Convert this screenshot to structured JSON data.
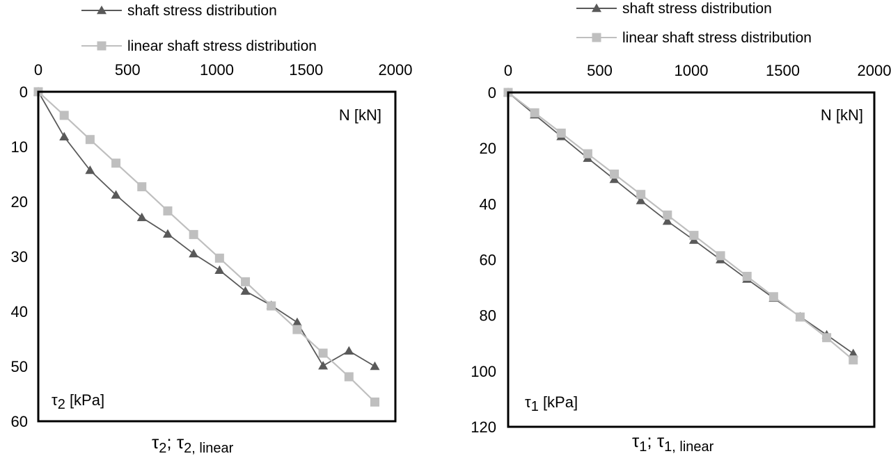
{
  "colors": {
    "shaft": "#595959",
    "linear": "#bfbfbf",
    "axis": "#000000"
  },
  "chart_data": [
    {
      "type": "line",
      "panel": "left",
      "legend": [
        "shaft stress distribution",
        "linear shaft stress distribution"
      ],
      "x_axis_position": "top",
      "x_ticks": [
        "0",
        "500",
        "1000",
        "1500",
        "2000"
      ],
      "y_ticks": [
        "0",
        "10",
        "20",
        "30",
        "40",
        "50",
        "60"
      ],
      "xlim": [
        0,
        2000
      ],
      "ylim": [
        0,
        60
      ],
      "y_inverted": true,
      "corner_label": "N [kN]",
      "inner_label": {
        "symbol": "τ",
        "sub": "2",
        "rest": "  [kPa]"
      },
      "xlabel": {
        "sym1": "τ",
        "sub1": "2",
        "mid": "; ",
        "sym2": "τ",
        "sub2": "2, linear"
      },
      "series": [
        {
          "name": "shaft stress distribution",
          "marker": "triangle",
          "x": [
            0,
            145,
            290,
            435,
            580,
            725,
            870,
            1015,
            1160,
            1305,
            1450,
            1595,
            1740,
            1885
          ],
          "y": [
            0,
            8.2,
            14.3,
            18.8,
            22.9,
            25.9,
            29.5,
            32.5,
            36.3,
            38.9,
            42.0,
            49.9,
            47.2,
            50.0
          ]
        },
        {
          "name": "linear shaft stress distribution",
          "marker": "square",
          "x": [
            0,
            145,
            290,
            435,
            580,
            725,
            870,
            1015,
            1160,
            1305,
            1450,
            1595,
            1740,
            1885
          ],
          "y": [
            0,
            4.3,
            8.7,
            13.0,
            17.3,
            21.7,
            26.0,
            30.3,
            34.6,
            39.0,
            43.3,
            47.6,
            51.9,
            56.5
          ]
        }
      ]
    },
    {
      "type": "line",
      "panel": "right",
      "legend": [
        "shaft stress distribution",
        "linear shaft stress distribution"
      ],
      "x_axis_position": "top",
      "x_ticks": [
        "0",
        "500",
        "1000",
        "1500",
        "2000"
      ],
      "y_ticks": [
        "0",
        "20",
        "40",
        "60",
        "80",
        "100",
        "120"
      ],
      "xlim": [
        0,
        2000
      ],
      "ylim": [
        0,
        120
      ],
      "y_inverted": true,
      "corner_label": "N [kN]",
      "inner_label": {
        "symbol": "τ",
        "sub": "1",
        "rest": "  [kPa]"
      },
      "xlabel": {
        "sym1": "τ",
        "sub1": "1",
        "mid": "; ",
        "sym2": "τ",
        "sub2": "1, linear"
      },
      "series": [
        {
          "name": "shaft stress distribution",
          "marker": "triangle",
          "x": [
            0,
            145,
            290,
            435,
            580,
            725,
            870,
            1015,
            1160,
            1305,
            1450,
            1595,
            1740,
            1885
          ],
          "y": [
            0,
            8.0,
            15.8,
            23.6,
            31.2,
            38.8,
            46.2,
            53.0,
            60.0,
            67.0,
            73.8,
            80.5,
            87.0,
            93.7
          ]
        },
        {
          "name": "linear shaft stress distribution",
          "marker": "square",
          "x": [
            0,
            145,
            290,
            435,
            580,
            725,
            870,
            1015,
            1160,
            1305,
            1450,
            1595,
            1740,
            1885
          ],
          "y": [
            0,
            7.3,
            14.6,
            22.0,
            29.3,
            36.6,
            44.0,
            51.3,
            58.6,
            66.0,
            73.3,
            80.6,
            88.0,
            96.0
          ]
        }
      ]
    }
  ]
}
